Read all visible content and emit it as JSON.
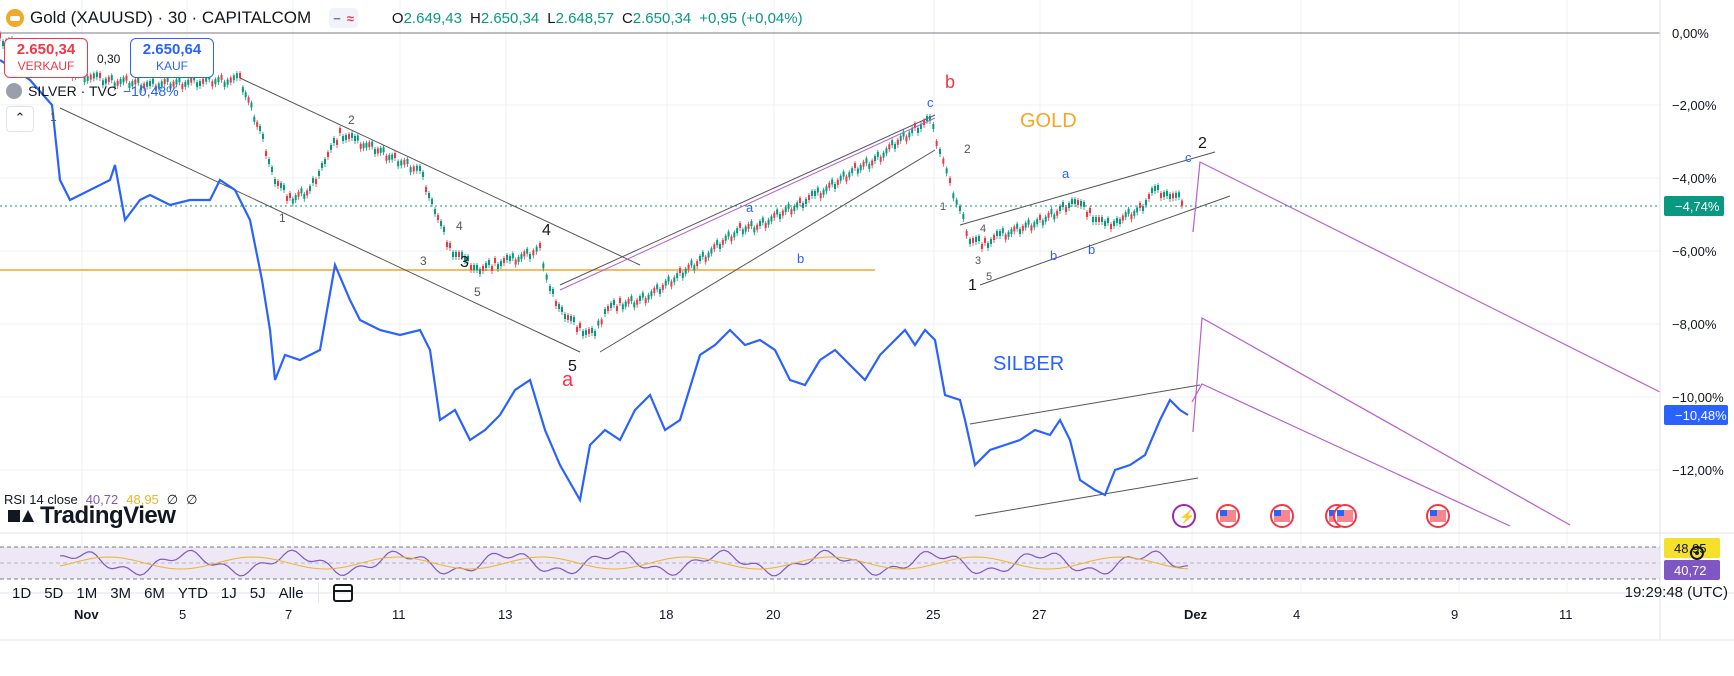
{
  "header": {
    "symbol": "Gold (XAUUSD) · 30 · CAPITALCOM",
    "pill_a": "−",
    "pill_b": "≈",
    "ohlc": [
      {
        "k": "O",
        "v": "2.649,43"
      },
      {
        "k": "H",
        "v": "2.650,34"
      },
      {
        "k": "L",
        "v": "2.648,57"
      },
      {
        "k": "C",
        "v": "2.650,34"
      },
      {
        "k": "",
        "v": "+0,95 (+0,04%)"
      }
    ]
  },
  "trade": {
    "sell_price": "2.650,34",
    "sell_label": "VERKAUF",
    "spread": "0,30",
    "buy_price": "2.650,64",
    "buy_label": "KAUF"
  },
  "compare": {
    "label": "SILVER · TVC",
    "pct": "−10,48%",
    "collapse_icon": "chevron-up-icon"
  },
  "annotations": {
    "gold_label": "GOLD",
    "silver_label": "SILBER",
    "gold_color": "#f5a623",
    "silver_color": "#2962ff"
  },
  "price_axis": {
    "ticks": [
      "0,00%",
      "−2,00%",
      "−4,00%",
      "−6,00%",
      "−8,00%",
      "−10,00%",
      "−12,00%"
    ],
    "gold_badge": "−4,74%",
    "silver_badge": "−10,48%",
    "gold_badge_color": "#089981",
    "silver_badge_color": "#2962ff"
  },
  "time_axis": {
    "labels": [
      "Nov",
      "5",
      "7",
      "11",
      "13",
      "18",
      "20",
      "25",
      "27",
      "Dez",
      "4",
      "9",
      "11"
    ]
  },
  "rsi": {
    "title": "RSI 14 close",
    "v1": "40,72",
    "v2": "48,95",
    "sym1": "∅",
    "sym2": "∅",
    "badge_top": "48,95",
    "badge_bottom": "40,72"
  },
  "wave_labels": {
    "gold": [
      "1",
      "2",
      "1",
      "3",
      "4",
      "5",
      "3",
      "4",
      "5",
      "a",
      "b",
      "c",
      "b",
      "2",
      "1",
      "3",
      "4",
      "5",
      "1",
      "a",
      "b",
      "c",
      "2"
    ]
  },
  "branding": {
    "logo": "TradingView"
  },
  "toolbar": {
    "timeframes": [
      "1D",
      "5D",
      "1M",
      "3M",
      "6M",
      "YTD",
      "1J",
      "5J",
      "Alle"
    ],
    "calendar_icon": "calendar-range-icon",
    "clock": "19:29:48 (UTC)",
    "settings_icon": "gear-icon"
  }
}
